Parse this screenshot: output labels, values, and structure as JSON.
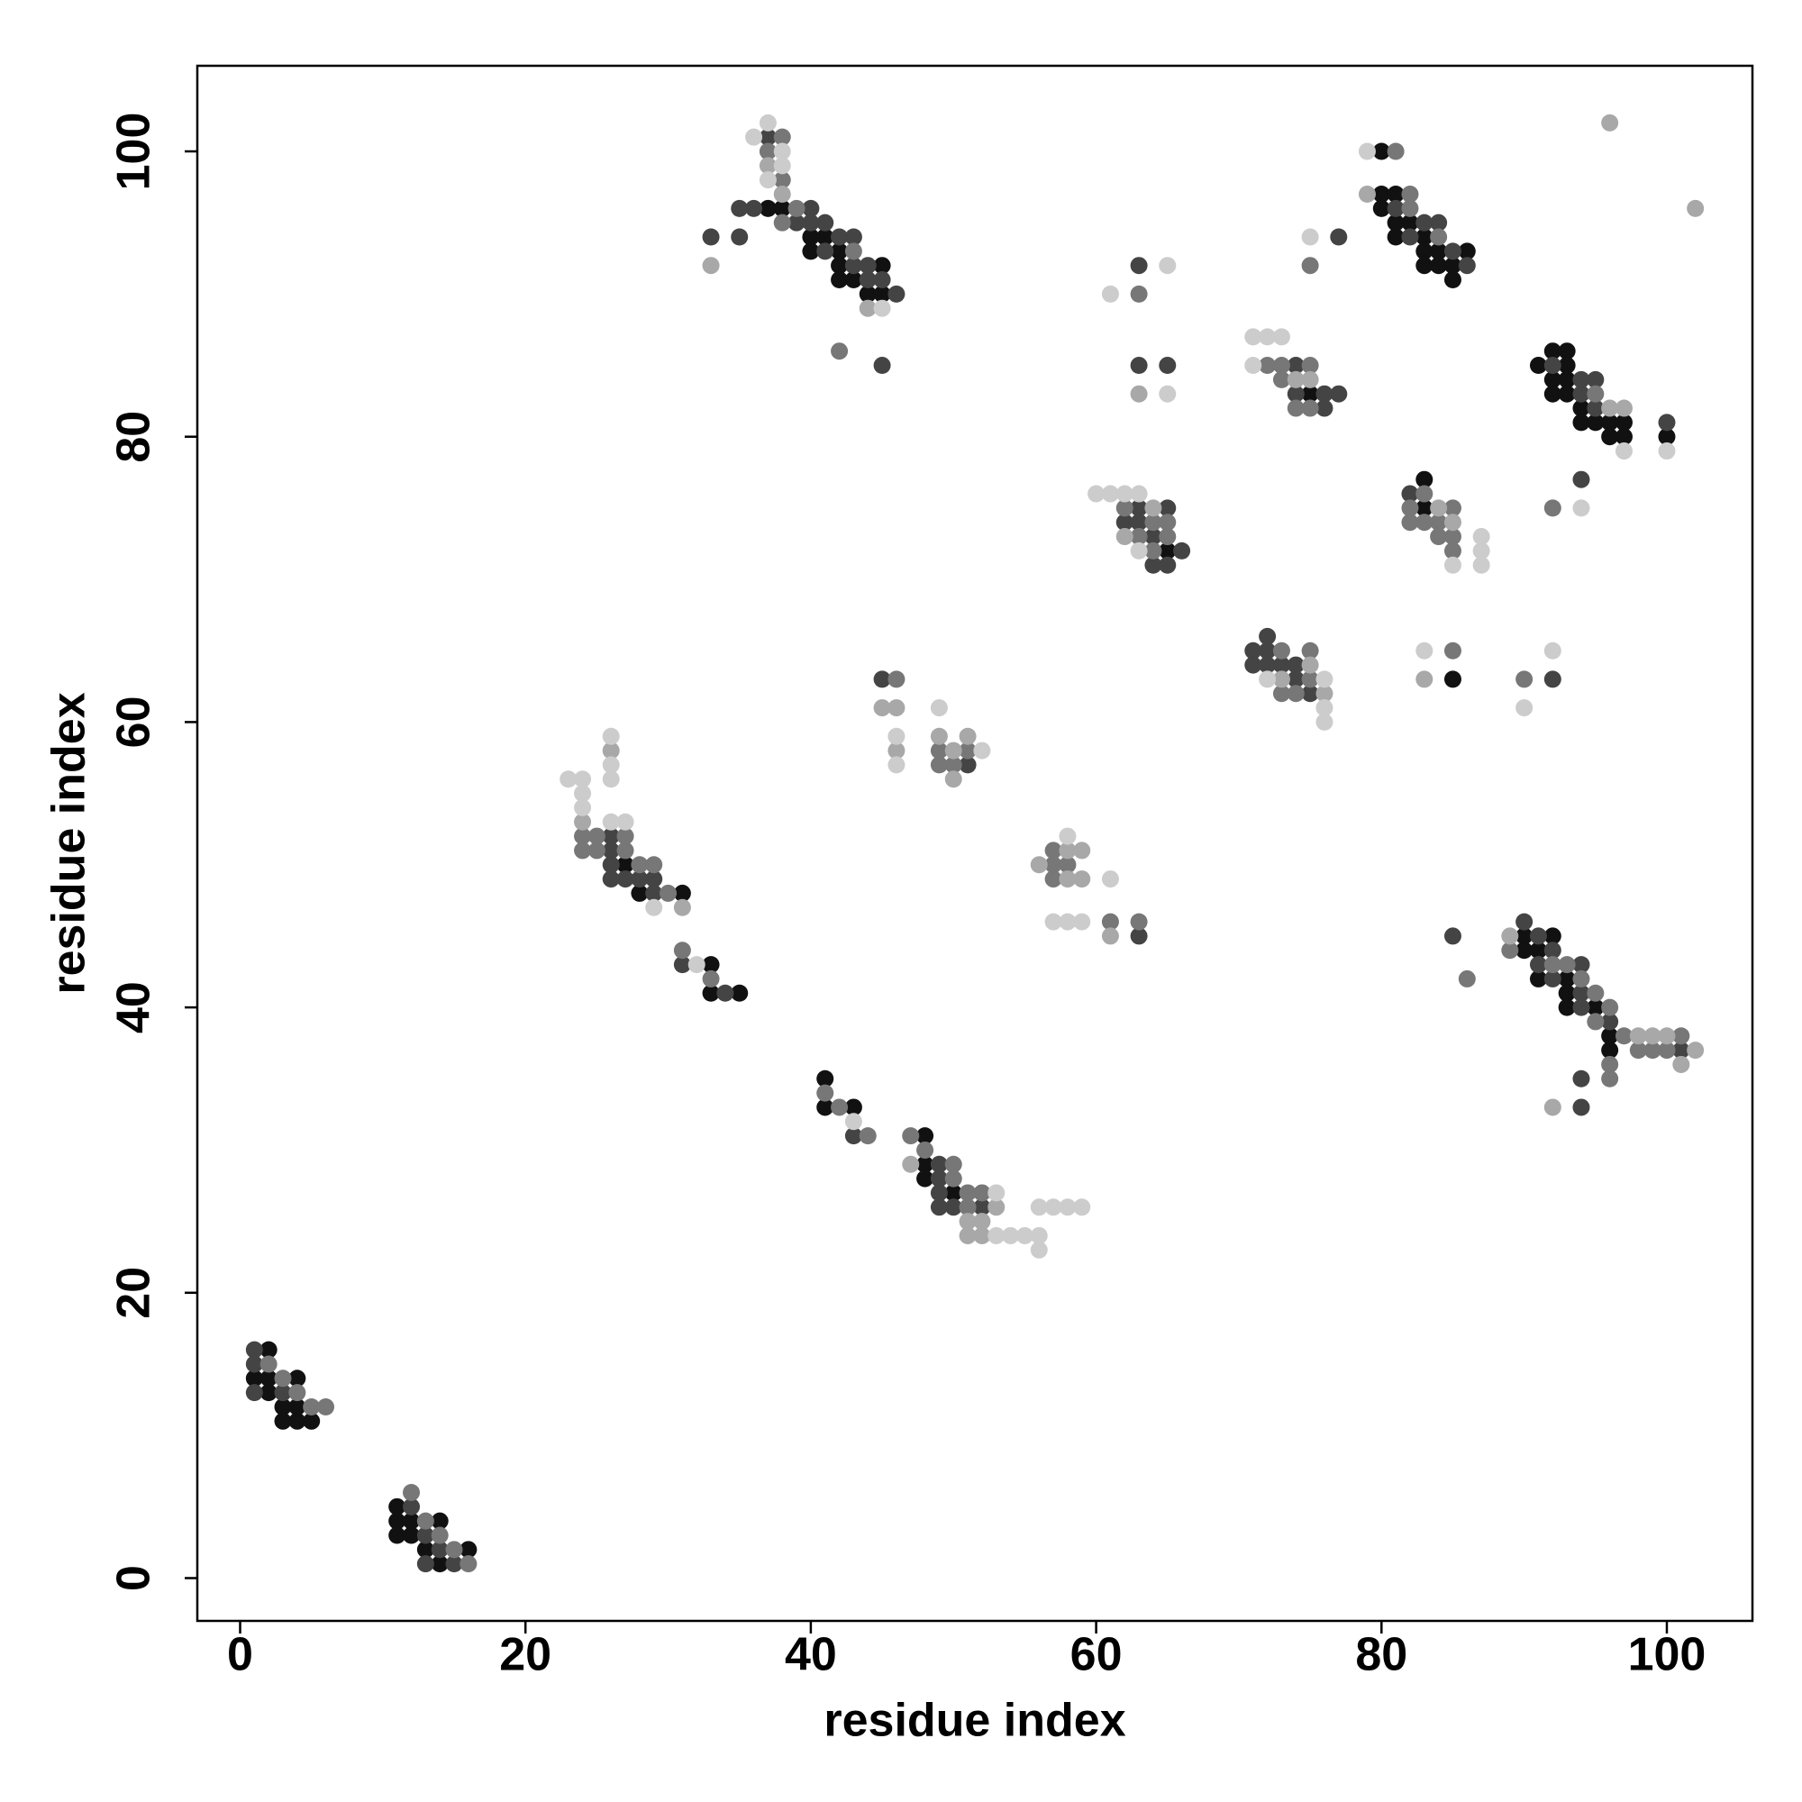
{
  "chart_data": {
    "type": "scatter",
    "xlabel": "residue index",
    "ylabel": "residue index",
    "xlim": [
      -3,
      106
    ],
    "ylim": [
      -3,
      106
    ],
    "xticks": [
      0,
      20,
      40,
      60,
      80,
      100
    ],
    "yticks": [
      0,
      20,
      40,
      60,
      80,
      100
    ],
    "series": [
      {
        "color": "#111111",
        "x": [
          2,
          1,
          2,
          4,
          2,
          3,
          4,
          3,
          4,
          5,
          11,
          11,
          12,
          14,
          11,
          12,
          13,
          16,
          14,
          27,
          28,
          31,
          33,
          33,
          35,
          37,
          38,
          40,
          41,
          40,
          42,
          42,
          45,
          42,
          43,
          44,
          45,
          41,
          41,
          43,
          48,
          48,
          48,
          50,
          65,
          75,
          80,
          80,
          81,
          80,
          81,
          82,
          81,
          83,
          83,
          84,
          86,
          83,
          84,
          85,
          85,
          83,
          83,
          85,
          92,
          93,
          91,
          93,
          92,
          93,
          92,
          93,
          94,
          94,
          95,
          96,
          97,
          96,
          97,
          100,
          90,
          92,
          90,
          91,
          91,
          93,
          93,
          93,
          95,
          96,
          96
        ],
        "y": [
          16,
          14,
          14,
          14,
          13,
          12,
          12,
          11,
          11,
          11,
          5,
          4,
          4,
          4,
          3,
          3,
          2,
          2,
          1,
          50,
          48,
          48,
          43,
          41,
          41,
          96,
          96,
          94,
          94,
          93,
          93,
          92,
          92,
          91,
          91,
          90,
          90,
          35,
          33,
          33,
          31,
          29,
          28,
          27,
          72,
          83,
          100,
          97,
          97,
          96,
          95,
          95,
          94,
          94,
          93,
          93,
          93,
          92,
          92,
          92,
          91,
          77,
          75,
          63,
          86,
          86,
          85,
          85,
          84,
          84,
          83,
          83,
          82,
          81,
          81,
          81,
          81,
          80,
          80,
          80,
          45,
          45,
          44,
          44,
          42,
          42,
          41,
          40,
          40,
          38,
          37
        ]
      },
      {
        "color": "#444444",
        "x": [
          1,
          1,
          1,
          3,
          12,
          13,
          14,
          13,
          15,
          26,
          26,
          26,
          26,
          27,
          28,
          29,
          29,
          31,
          34,
          37,
          35,
          36,
          40,
          39,
          40,
          41,
          33,
          35,
          42,
          43,
          41,
          43,
          44,
          44,
          45,
          46,
          45,
          43,
          49,
          49,
          49,
          49,
          50,
          52,
          45,
          51,
          63,
          63,
          65,
          62,
          63,
          64,
          66,
          64,
          65,
          63,
          63,
          65,
          74,
          74,
          76,
          77,
          76,
          77,
          72,
          71,
          72,
          71,
          72,
          73,
          74,
          74,
          75,
          92,
          81,
          83,
          84,
          82,
          85,
          86,
          82,
          92,
          94,
          95,
          94,
          95,
          100,
          94,
          90,
          85,
          91,
          92,
          91,
          94,
          92,
          94,
          94,
          96,
          101,
          94,
          94
        ],
        "y": [
          16,
          15,
          13,
          13,
          5,
          3,
          2,
          1,
          1,
          52,
          51,
          50,
          49,
          49,
          49,
          49,
          48,
          43,
          41,
          101,
          96,
          96,
          96,
          95,
          95,
          95,
          94,
          94,
          94,
          94,
          93,
          92,
          92,
          91,
          91,
          90,
          85,
          31,
          29,
          28,
          27,
          26,
          26,
          26,
          63,
          57,
          45,
          75,
          75,
          74,
          74,
          73,
          72,
          71,
          71,
          92,
          85,
          85,
          85,
          83,
          83,
          83,
          82,
          94,
          66,
          65,
          65,
          64,
          64,
          64,
          64,
          63,
          62,
          63,
          96,
          95,
          95,
          94,
          93,
          92,
          76,
          85,
          84,
          84,
          83,
          82,
          81,
          77,
          46,
          45,
          45,
          44,
          43,
          43,
          42,
          41,
          40,
          39,
          37,
          35,
          33
        ]
      },
      {
        "color": "#777777",
        "x": [
          2,
          3,
          4,
          5,
          6,
          12,
          13,
          14,
          15,
          16,
          24,
          25,
          27,
          24,
          25,
          27,
          28,
          29,
          30,
          31,
          33,
          38,
          37,
          38,
          39,
          38,
          43,
          42,
          41,
          42,
          44,
          47,
          48,
          50,
          50,
          51,
          52,
          51,
          46,
          49,
          51,
          49,
          50,
          57,
          57,
          58,
          57,
          61,
          63,
          62,
          64,
          65,
          63,
          65,
          64,
          63,
          72,
          73,
          75,
          73,
          74,
          75,
          75,
          73,
          75,
          75,
          73,
          74,
          90,
          81,
          82,
          82,
          84,
          83,
          82,
          85,
          82,
          83,
          84,
          84,
          85,
          85,
          85,
          95,
          92,
          89,
          92,
          93,
          94,
          86,
          95,
          96,
          95,
          97,
          101,
          98,
          99,
          100,
          96,
          96
        ],
        "y": [
          15,
          14,
          13,
          12,
          12,
          6,
          4,
          3,
          2,
          1,
          52,
          52,
          52,
          51,
          51,
          51,
          50,
          50,
          48,
          44,
          42,
          101,
          100,
          98,
          96,
          95,
          93,
          86,
          34,
          33,
          31,
          31,
          30,
          29,
          28,
          27,
          27,
          26,
          63,
          58,
          58,
          57,
          57,
          51,
          50,
          50,
          49,
          46,
          46,
          75,
          74,
          74,
          73,
          73,
          72,
          90,
          85,
          85,
          85,
          84,
          82,
          82,
          92,
          65,
          65,
          63,
          62,
          62,
          63,
          100,
          97,
          96,
          94,
          76,
          75,
          75,
          74,
          74,
          74,
          73,
          73,
          72,
          65,
          83,
          75,
          44,
          43,
          43,
          42,
          42,
          41,
          40,
          39,
          38,
          38,
          37,
          37,
          37,
          36,
          35
        ]
      },
      {
        "color": "#a8a8a8",
        "x": [
          26,
          24,
          31,
          37,
          38,
          33,
          44,
          47,
          53,
          51,
          52,
          51,
          52,
          45,
          46,
          49,
          51,
          46,
          50,
          50,
          58,
          59,
          56,
          58,
          59,
          61,
          64,
          62,
          63,
          74,
          75,
          75,
          73,
          76,
          79,
          84,
          85,
          83,
          96,
          97,
          96,
          102,
          89,
          98,
          99,
          100,
          102,
          101,
          92
        ],
        "y": [
          58,
          53,
          47,
          99,
          97,
          92,
          89,
          29,
          26,
          25,
          25,
          24,
          24,
          61,
          61,
          59,
          59,
          58,
          58,
          56,
          51,
          51,
          50,
          49,
          49,
          45,
          75,
          73,
          83,
          84,
          84,
          64,
          63,
          62,
          97,
          75,
          74,
          63,
          82,
          82,
          102,
          96,
          45,
          38,
          38,
          38,
          37,
          36,
          33
        ]
      },
      {
        "color": "#cccccc",
        "x": [
          26,
          26,
          23,
          24,
          26,
          24,
          24,
          26,
          27,
          29,
          32,
          37,
          36,
          38,
          38,
          37,
          45,
          43,
          53,
          56,
          57,
          58,
          59,
          53,
          54,
          55,
          56,
          56,
          49,
          46,
          52,
          46,
          58,
          61,
          57,
          58,
          59,
          60,
          61,
          62,
          63,
          63,
          61,
          65,
          65,
          71,
          72,
          73,
          71,
          75,
          72,
          76,
          76,
          76,
          92,
          90,
          79,
          87,
          87,
          85,
          87,
          83,
          97,
          100,
          94
        ],
        "y": [
          59,
          57,
          56,
          56,
          56,
          55,
          54,
          53,
          53,
          47,
          43,
          102,
          101,
          100,
          99,
          98,
          89,
          32,
          27,
          26,
          26,
          26,
          26,
          24,
          24,
          24,
          24,
          23,
          61,
          59,
          58,
          57,
          52,
          49,
          46,
          46,
          46,
          76,
          76,
          76,
          76,
          72,
          90,
          92,
          83,
          87,
          87,
          87,
          85,
          94,
          63,
          63,
          61,
          60,
          65,
          61,
          100,
          73,
          72,
          71,
          71,
          65,
          79,
          79,
          75
        ]
      }
    ]
  }
}
